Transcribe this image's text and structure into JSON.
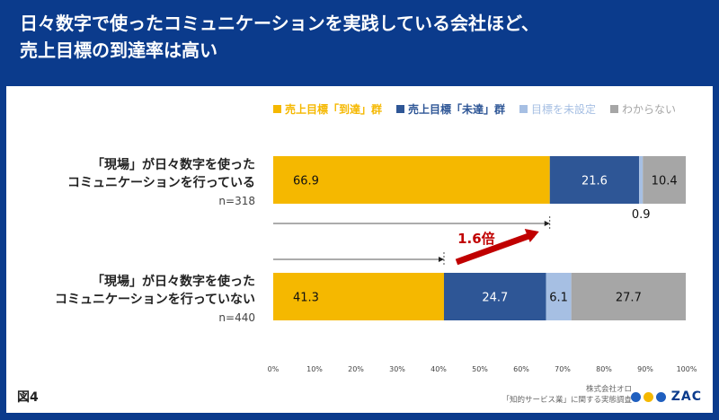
{
  "header": {
    "title_line1": "日々数字で使ったコミュニケーションを実践している会社ほど、",
    "title_line2": "売上目標の到達率は高い"
  },
  "figure_label": "図4",
  "credit": {
    "line1": "株式会社オロ",
    "line2": "「知的サービス業」に関する実態調査"
  },
  "logo": {
    "text": "ZAC",
    "colors": [
      "#1f5fbf",
      "#f5b800",
      "#1f5fbf"
    ]
  },
  "colors": {
    "header_bg": "#0b3b8c",
    "reached": "#f5b800",
    "not_reached": "#2e5696",
    "no_target": "#a6bfe3",
    "unknown": "#a6a6a6",
    "arrow": "#c00000"
  },
  "chart_data": {
    "type": "bar",
    "orientation": "horizontal",
    "stacked": true,
    "categories": [
      {
        "lines": [
          "「現場」が日々数字を使った",
          "コミュニケーションを行っている"
        ],
        "n": "n=318"
      },
      {
        "lines": [
          "「現場」が日々数字を使った",
          "コミュニケーションを行っていない"
        ],
        "n": "n=440"
      }
    ],
    "series": [
      {
        "name": "売上目標「到達」群",
        "values": [
          66.9,
          41.3
        ],
        "color": "#f5b800",
        "labels": [
          "66.9",
          "41.3"
        ]
      },
      {
        "name": "売上目標「未達」群",
        "values": [
          21.6,
          24.7
        ],
        "color": "#2e5696",
        "labels": [
          "21.6",
          "24.7"
        ]
      },
      {
        "name": "目標を未設定",
        "values": [
          0.9,
          6.1
        ],
        "color": "#a6bfe3",
        "labels": [
          "0.9",
          "6.1"
        ]
      },
      {
        "name": "わからない",
        "values": [
          10.4,
          27.7
        ],
        "color": "#a6a6a6",
        "labels": [
          "10.4",
          "27.7"
        ]
      }
    ],
    "xlim": [
      0,
      100
    ],
    "xticks": [
      "0%",
      "10%",
      "20%",
      "30%",
      "40%",
      "50%",
      "60%",
      "70%",
      "80%",
      "90%",
      "100%"
    ],
    "legend_position": "top",
    "annotation": {
      "text": "1.6倍"
    }
  }
}
